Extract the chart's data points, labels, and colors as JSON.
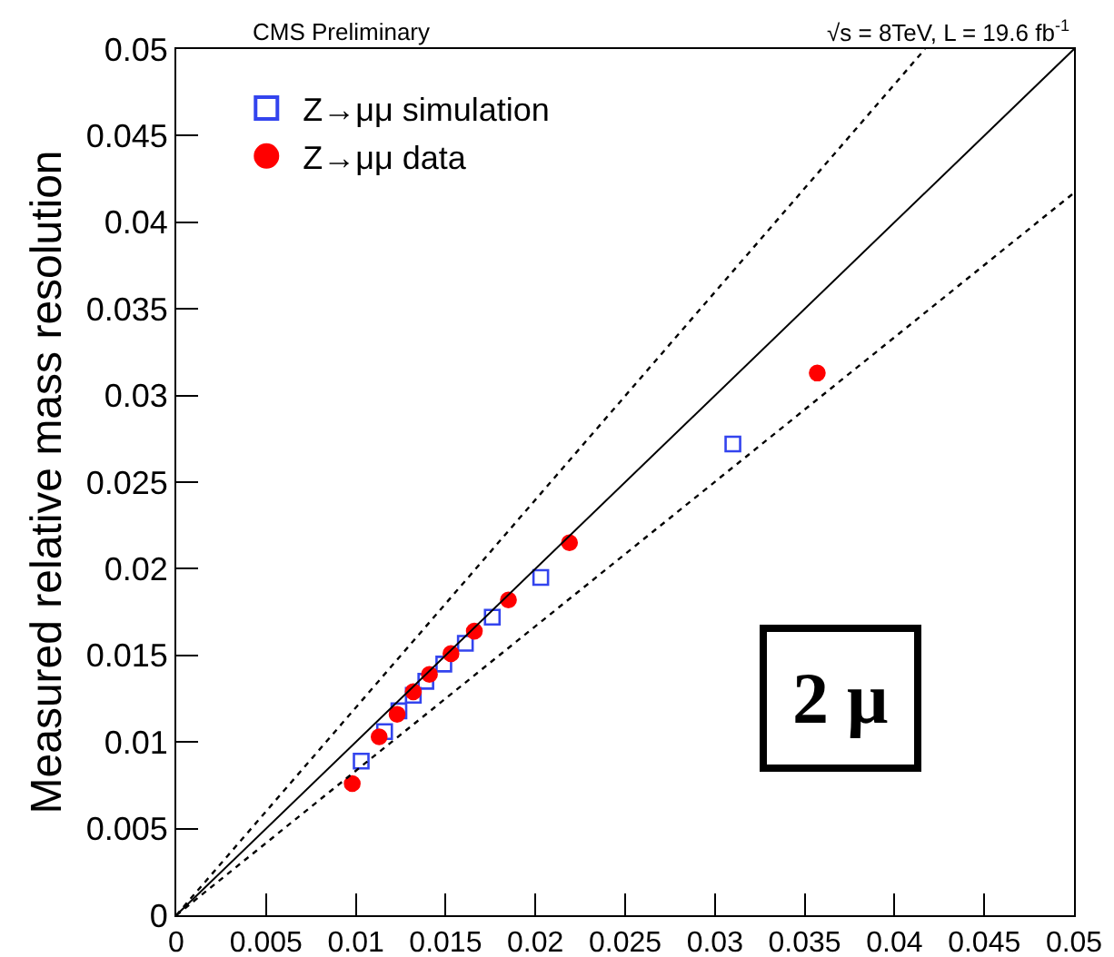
{
  "chart_data": {
    "type": "scatter",
    "ylabel": "Measured relative mass resolution",
    "annotations": [
      "CMS Preliminary",
      "√s = 8TeV, L = 19.6 fb$^{-1}$",
      "2 μ"
    ],
    "xlim": [
      0,
      0.05
    ],
    "ylim": [
      0,
      0.05
    ],
    "xticks": [
      0,
      0.005,
      0.01,
      0.015,
      0.02,
      0.025,
      0.03,
      0.035,
      0.04,
      0.045,
      0.05
    ],
    "yticks": [
      0,
      0.005,
      0.01,
      0.015,
      0.02,
      0.025,
      0.03,
      0.035,
      0.04,
      0.045,
      0.05
    ],
    "grid": false,
    "legend": "top left",
    "series": [
      {
        "name": "Z→μμ simulation",
        "color": "#3344ee",
        "marker": "square",
        "x": [
          0.0103,
          0.0116,
          0.0124,
          0.0132,
          0.0139,
          0.0149,
          0.0161,
          0.0176,
          0.0203,
          0.031
        ],
        "values": [
          0.0089,
          0.0106,
          0.0118,
          0.0127,
          0.0135,
          0.0145,
          0.0157,
          0.0172,
          0.0195,
          0.0272
        ]
      },
      {
        "name": "Z→μμ data",
        "color": "#ff0000",
        "marker": "circle",
        "x": [
          0.0098,
          0.0113,
          0.0123,
          0.0132,
          0.0141,
          0.0153,
          0.0166,
          0.0185,
          0.0219,
          0.0357
        ],
        "values": [
          0.0076,
          0.0103,
          0.0116,
          0.0129,
          0.0139,
          0.0151,
          0.0164,
          0.0182,
          0.0215,
          0.0313
        ]
      },
      {
        "type": "line",
        "color": "#000000",
        "line_style": "solid",
        "marker": "none",
        "x": [
          0,
          0.05
        ],
        "values": [
          0,
          0.05
        ]
      },
      {
        "type": "line",
        "color": "#000000",
        "line_style": "dotted",
        "marker": "none",
        "x": [
          0,
          0.0417
        ],
        "values": [
          0,
          0.05
        ]
      },
      {
        "type": "line",
        "color": "#000000",
        "line_style": "dotted",
        "marker": "none",
        "x": [
          0,
          0.05
        ],
        "values": [
          0,
          0.0417
        ]
      }
    ]
  }
}
